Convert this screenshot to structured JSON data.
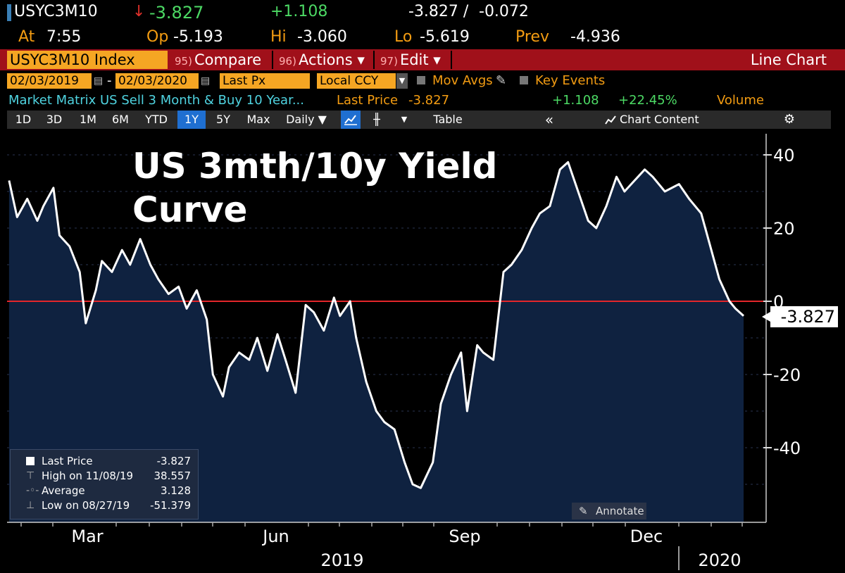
{
  "header": {
    "ticker": "USYC3M10",
    "arrow": "↓",
    "last": "-3.827",
    "change": "+1.108",
    "bid_ask": "-3.827 /",
    "bid_ask2": "-0.072",
    "time_label": "At",
    "time": "7:55",
    "op_label": "Op",
    "op": "-5.193",
    "hi_label": "Hi",
    "hi": "-3.060",
    "lo_label": "Lo",
    "lo": "-5.619",
    "prev_label": "Prev",
    "prev": "-4.936"
  },
  "menu": {
    "index": "USYC3M10 Index",
    "compare_num": "95)",
    "compare": "Compare",
    "actions_num": "96)",
    "actions": "Actions ▾",
    "edit_num": "97)",
    "edit": "Edit ▾",
    "chart_type": "Line Chart"
  },
  "inputs": {
    "start_date": "02/03/2019",
    "dash": "-",
    "end_date": "02/03/2020",
    "field": "Last Px",
    "currency": "Local CCY",
    "mov_avgs": "Mov Avgs",
    "key_events": "Key Events"
  },
  "info": {
    "description": "Market Matrix US Sell 3 Month & Buy 10 Year...",
    "last_price_label": "Last Price",
    "last_price": "-3.827",
    "change": "+1.108",
    "pct_change": "+22.45%",
    "volume": "Volume"
  },
  "toolbar": {
    "p1d": "1D",
    "p3d": "3D",
    "p1m": "1M",
    "p6m": "6M",
    "pytd": "YTD",
    "p1y": "1Y",
    "p5y": "5Y",
    "pmax": "Max",
    "daily": "Daily ▼",
    "table": "Table",
    "collapse": "«",
    "chart_content": "Chart Content",
    "settings": "⚙"
  },
  "legend": {
    "last_label": "Last Price",
    "last_val": "-3.827",
    "high_label": "High on 11/08/19",
    "high_val": "38.557",
    "avg_label": "Average",
    "avg_val": "3.128",
    "low_label": "Low on 08/27/19",
    "low_val": "-51.379"
  },
  "annotate": "Annotate",
  "colors": {
    "line": "#ffffff",
    "fill": "#0f2240",
    "zero_line": "#e3262a",
    "accent": "#f5a623",
    "menu_bar": "#a0101a"
  },
  "chart_data": {
    "type": "area",
    "title": "US 3mth/10y Yield Curve",
    "xlabel": "",
    "ylabel": "",
    "x_tick_labels": [
      "Mar",
      "Jun",
      "Sep",
      "Dec"
    ],
    "year_labels": [
      "2019",
      "2020"
    ],
    "y_ticks": [
      40,
      20,
      0,
      -20,
      -40
    ],
    "ylim": [
      -60,
      46
    ],
    "last_value_label": "-3.827",
    "x": [
      "2019-02-04",
      "2019-02-08",
      "2019-02-13",
      "2019-02-18",
      "2019-02-21",
      "2019-02-26",
      "2019-03-01",
      "2019-03-06",
      "2019-03-11",
      "2019-03-14",
      "2019-03-19",
      "2019-03-22",
      "2019-03-27",
      "2019-04-01",
      "2019-04-05",
      "2019-04-10",
      "2019-04-15",
      "2019-04-19",
      "2019-04-24",
      "2019-04-29",
      "2019-05-03",
      "2019-05-08",
      "2019-05-13",
      "2019-05-16",
      "2019-05-21",
      "2019-05-24",
      "2019-05-29",
      "2019-06-03",
      "2019-06-07",
      "2019-06-12",
      "2019-06-17",
      "2019-06-21",
      "2019-06-26",
      "2019-07-01",
      "2019-07-05",
      "2019-07-10",
      "2019-07-15",
      "2019-07-18",
      "2019-07-23",
      "2019-07-26",
      "2019-07-31",
      "2019-08-05",
      "2019-08-09",
      "2019-08-14",
      "2019-08-19",
      "2019-08-23",
      "2019-08-27",
      "2019-09-02",
      "2019-09-06",
      "2019-09-11",
      "2019-09-16",
      "2019-09-19",
      "2019-09-24",
      "2019-09-27",
      "2019-10-02",
      "2019-10-07",
      "2019-10-11",
      "2019-10-16",
      "2019-10-21",
      "2019-10-25",
      "2019-10-30",
      "2019-11-04",
      "2019-11-08",
      "2019-11-13",
      "2019-11-18",
      "2019-11-22",
      "2019-11-27",
      "2019-12-02",
      "2019-12-06",
      "2019-12-11",
      "2019-12-16",
      "2019-12-20",
      "2019-12-26",
      "2020-01-02",
      "2020-01-07",
      "2020-01-13",
      "2020-01-17",
      "2020-01-22",
      "2020-01-27",
      "2020-01-30",
      "2020-02-03"
    ],
    "series": [
      {
        "values": [
          33,
          23,
          28,
          22,
          26,
          31,
          18,
          15,
          8,
          -6,
          3,
          11,
          8,
          14,
          10,
          17,
          10,
          6,
          2,
          4,
          -2,
          3,
          -5,
          -20,
          -26,
          -18,
          -14,
          -16,
          -10,
          -19,
          -9,
          -16,
          -25,
          -1,
          -3,
          -8,
          1,
          -4,
          0,
          -10,
          -22,
          -30,
          -33,
          -35,
          -44,
          -50,
          -51,
          -44,
          -28,
          -20,
          -14,
          -30,
          -12,
          -14,
          -16,
          8,
          10,
          14,
          20,
          24,
          26,
          36,
          38,
          30,
          22,
          20,
          26,
          34,
          30,
          33,
          36,
          34,
          30,
          32,
          28,
          24,
          16,
          6,
          0,
          -2,
          -4
        ]
      }
    ]
  }
}
